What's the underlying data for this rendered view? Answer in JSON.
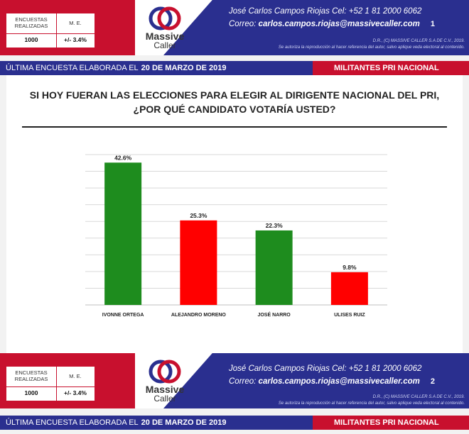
{
  "header_top": {
    "stat_labels": [
      "ENCUESTAS\nREALIZADAS",
      "M. E."
    ],
    "stat_values": [
      "1000",
      "+/- 3.4%"
    ],
    "logo_brand": "Massive",
    "logo_sub": "Caller",
    "contact_line1": "José Carlos Campos Riojas Cel: +52 1 81 2000 6062",
    "contact_prefix": "Correo: ",
    "contact_email": "carlos.campos.riojas@massivecaller.com",
    "page_number": "1",
    "rights_line1": "D.R., (C) MASSIVE CALLER S.A DE C.V., 2019.",
    "rights_line2": "Se autoriza la reproducción al hacer referencia del autor, salvo aplique veda electoral al contenido."
  },
  "strip_top": {
    "label": "ÚLTIMA ENCUESTA ELABORADA EL",
    "date": "20 DE MARZO DE 2019",
    "category": "MILITANTES PRI NACIONAL"
  },
  "question_line1": "SI HOY FUERAN LAS ELECCIONES PARA ELEGIR AL DIRIGENTE NACIONAL DEL PRI,",
  "question_line2": "¿POR QUÉ CANDIDATO VOTARÍA USTED?",
  "chart_data": {
    "type": "bar",
    "categories": [
      "IVONNE ORTEGA",
      "ALEJANDRO MORENO",
      "JOSÉ NARRO",
      "ULISES RUIZ"
    ],
    "values": [
      42.6,
      25.3,
      22.3,
      9.8
    ],
    "value_labels": [
      "42.6%",
      "25.3%",
      "22.3%",
      "9.8%"
    ],
    "colors": [
      "#1e8c1e",
      "#ff0000",
      "#1e8c1e",
      "#ff0000"
    ],
    "ylim": [
      0,
      45
    ],
    "grid": true,
    "title": "",
    "xlabel": "",
    "ylabel": ""
  },
  "header_bottom": {
    "stat_labels": [
      "ENCUESTAS\nREALIZADAS",
      "M. E."
    ],
    "stat_values": [
      "1000",
      "+/- 3.4%"
    ],
    "logo_brand": "Massive",
    "logo_sub": "Caller",
    "contact_line1": "José Carlos Campos Riojas Cel: +52 1 81 2000 6062",
    "contact_prefix": "Correo: ",
    "contact_email": "carlos.campos.riojas@massivecaller.com",
    "page_number": "2",
    "rights_line1": "D.R., (C) MASSIVE CALLER S.A DE C.V., 2019.",
    "rights_line2": "Se autoriza la reproducción al hacer referencia del autor, salvo aplique veda electoral al contenido."
  },
  "strip_bottom": {
    "label": "ÚLTIMA ENCUESTA ELABORADA EL",
    "date": "20 DE MARZO DE 2019",
    "category": "MILITANTES PRI NACIONAL"
  }
}
